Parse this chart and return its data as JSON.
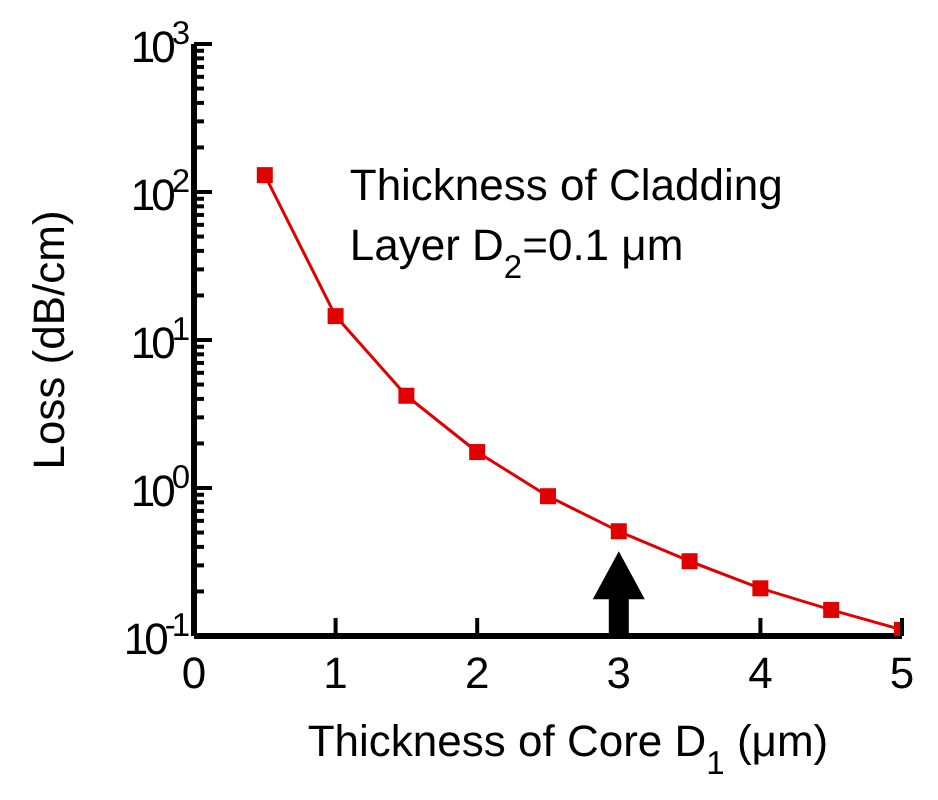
{
  "chart_data": {
    "type": "line",
    "xlabel": "Thickness of Core D$_{1}$ (μm)",
    "ylabel": "Loss (dB/cm)",
    "annotations": [
      "Thickness of Cladding Layer D$_{2}$=0.1 μm"
    ],
    "x": [
      0.5,
      1,
      1.5,
      2,
      2.5,
      3,
      3.5,
      4,
      4.5,
      5
    ],
    "series": [
      {
        "color": "#e00000",
        "values": [
          130,
          14.5,
          4.2,
          1.75,
          0.88,
          0.51,
          0.32,
          0.21,
          0.15,
          0.11
        ]
      }
    ],
    "marker": "square",
    "line_style": "solid",
    "log": "y",
    "grid": false,
    "legend": false,
    "xlim": [
      0,
      5
    ],
    "xticks": [
      0,
      1,
      2,
      3,
      4,
      5
    ],
    "ylim": [
      0.1,
      1000
    ],
    "yticks": [
      {
        "value": 0.1,
        "label": "10$^{-1}$"
      },
      {
        "value": 0.2,
        "label": null
      },
      {
        "value": 0.3,
        "label": null
      },
      {
        "value": 0.4,
        "label": null
      },
      {
        "value": 0.5,
        "label": null
      },
      {
        "value": 0.6,
        "label": null
      },
      {
        "value": 0.7,
        "label": null
      },
      {
        "value": 0.8,
        "label": null
      },
      {
        "value": 0.9,
        "label": null
      },
      {
        "value": 1,
        "label": "10$^{0}$"
      },
      {
        "value": 2,
        "label": null
      },
      {
        "value": 3,
        "label": null
      },
      {
        "value": 4,
        "label": null
      },
      {
        "value": 5,
        "label": null
      },
      {
        "value": 6,
        "label": null
      },
      {
        "value": 7,
        "label": null
      },
      {
        "value": 8,
        "label": null
      },
      {
        "value": 9,
        "label": null
      },
      {
        "value": 10,
        "label": "10$^{1}$"
      },
      {
        "value": 20,
        "label": null
      },
      {
        "value": 30,
        "label": null
      },
      {
        "value": 40,
        "label": null
      },
      {
        "value": 50,
        "label": null
      },
      {
        "value": 60,
        "label": null
      },
      {
        "value": 70,
        "label": null
      },
      {
        "value": 80,
        "label": null
      },
      {
        "value": 90,
        "label": null
      },
      {
        "value": 100,
        "label": "10$^{2}$"
      },
      {
        "value": 200,
        "label": null
      },
      {
        "value": 300,
        "label": null
      },
      {
        "value": 400,
        "label": null
      },
      {
        "value": 500,
        "label": null
      },
      {
        "value": 600,
        "label": null
      },
      {
        "value": 700,
        "label": null
      },
      {
        "value": 800,
        "label": null
      },
      {
        "value": 900,
        "label": null
      },
      {
        "value": 1000,
        "label": "10$^{3}$"
      }
    ]
  }
}
